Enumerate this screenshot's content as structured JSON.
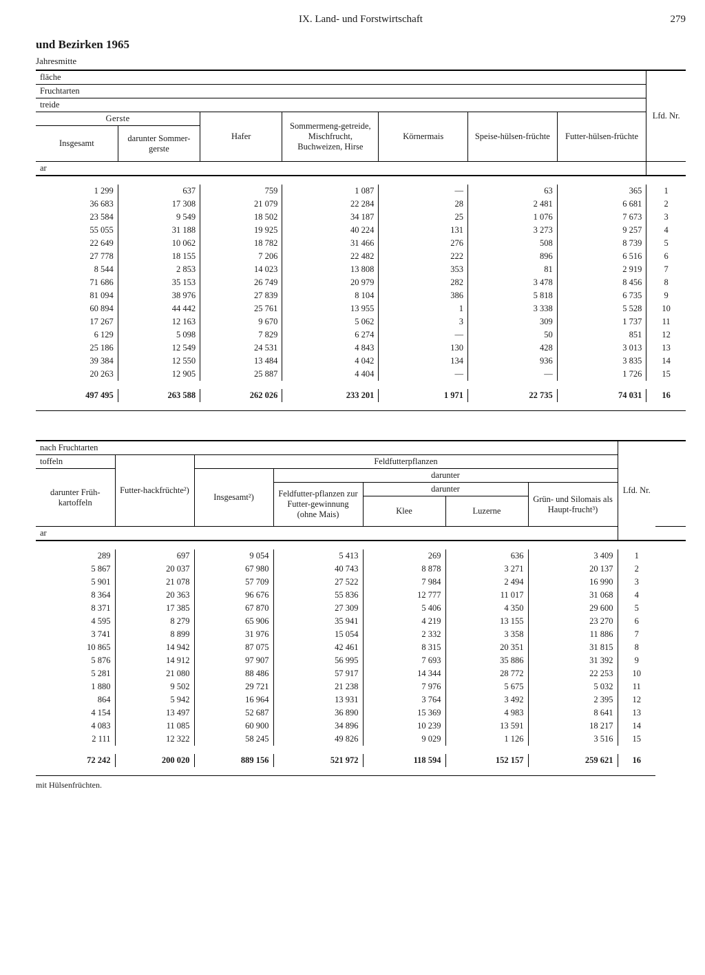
{
  "page": {
    "chapter": "IX. Land- und Forstwirtschaft",
    "number": "279",
    "title_continuation": "und Bezirken 1965",
    "mid_note": "Jahresmitte",
    "footnote": "mit Hülsenfrüchten."
  },
  "t1": {
    "hdr_flaeche": "fläche",
    "hdr_fruchtarten": "Fruchtarten",
    "hdr_treide": "treide",
    "hdr_gerste": "Gerste",
    "hdr_insgesamt": "Insgesamt",
    "hdr_sommergerste": "darunter Sommer-gerste",
    "hdr_hafer": "Hafer",
    "hdr_sommermeng": "Sommermeng-getreide, Mischfrucht, Buchweizen, Hirse",
    "hdr_koernermais": "Körnermais",
    "hdr_speise": "Speise-hülsen-früchte",
    "hdr_futter": "Futter-hülsen-früchte",
    "hdr_lfd": "Lfd. Nr.",
    "unit": "ar",
    "rows": [
      [
        "1 299",
        "637",
        "759",
        "1 087",
        "—",
        "63",
        "365",
        "1"
      ],
      [
        "36 683",
        "17 308",
        "21 079",
        "22 284",
        "28",
        "2 481",
        "6 681",
        "2"
      ],
      [
        "23 584",
        "9 549",
        "18 502",
        "34 187",
        "25",
        "1 076",
        "7 673",
        "3"
      ],
      [
        "55 055",
        "31 188",
        "19 925",
        "40 224",
        "131",
        "3 273",
        "9 257",
        "4"
      ],
      [
        "22 649",
        "10 062",
        "18 782",
        "31 466",
        "276",
        "508",
        "8 739",
        "5"
      ],
      [
        "27 778",
        "18 155",
        "7 206",
        "22 482",
        "222",
        "896",
        "6 516",
        "6"
      ],
      [
        "8 544",
        "2 853",
        "14 023",
        "13 808",
        "353",
        "81",
        "2 919",
        "7"
      ],
      [
        "71 686",
        "35 153",
        "26 749",
        "20 979",
        "282",
        "3 478",
        "8 456",
        "8"
      ],
      [
        "81 094",
        "38 976",
        "27 839",
        "8 104",
        "386",
        "5 818",
        "6 735",
        "9"
      ],
      [
        "60 894",
        "44 442",
        "25 761",
        "13 955",
        "1",
        "3 338",
        "5 528",
        "10"
      ],
      [
        "17 267",
        "12 163",
        "9 670",
        "5 062",
        "3",
        "309",
        "1 737",
        "11"
      ],
      [
        "6 129",
        "5 098",
        "7 829",
        "6 274",
        "—",
        "50",
        "851",
        "12"
      ],
      [
        "25 186",
        "12 549",
        "24 531",
        "4 843",
        "130",
        "428",
        "3 013",
        "13"
      ],
      [
        "39 384",
        "12 550",
        "13 484",
        "4 042",
        "134",
        "936",
        "3 835",
        "14"
      ],
      [
        "20 263",
        "12 905",
        "25 887",
        "4 404",
        "—",
        "—",
        "1 726",
        "15"
      ]
    ],
    "total": [
      "497 495",
      "263 588",
      "262 026",
      "233 201",
      "1 971",
      "22 735",
      "74 031",
      "16"
    ]
  },
  "t2": {
    "hdr_nach_fruchtarten": "nach Fruchtarten",
    "hdr_toffeln": "toffeln",
    "hdr_feldfutter_group": "Feldfutterpflanzen",
    "hdr_darunter": "darunter",
    "hdr_fruehkart": "darunter Früh-kartoffeln",
    "hdr_futterhack": "Futter-hackfrüchte²)",
    "hdr_insgesamt2": "Insgesamt²)",
    "hdr_feld_ohne_mais": "Feldfutter-pflanzen zur Futter-gewinnung (ohne Mais)",
    "hdr_klee": "Klee",
    "hdr_luzerne": "Luzerne",
    "hdr_gruen": "Grün- und Silomais als Haupt-frucht³)",
    "hdr_lfd": "Lfd. Nr.",
    "unit": "ar",
    "rows": [
      [
        "289",
        "697",
        "9 054",
        "5 413",
        "269",
        "636",
        "3 409",
        "1"
      ],
      [
        "5 867",
        "20 037",
        "67 980",
        "40 743",
        "8 878",
        "3 271",
        "20 137",
        "2"
      ],
      [
        "5 901",
        "21 078",
        "57 709",
        "27 522",
        "7 984",
        "2 494",
        "16 990",
        "3"
      ],
      [
        "8 364",
        "20 363",
        "96 676",
        "55 836",
        "12 777",
        "11 017",
        "31 068",
        "4"
      ],
      [
        "8 371",
        "17 385",
        "67 870",
        "27 309",
        "5 406",
        "4 350",
        "29 600",
        "5"
      ],
      [
        "4 595",
        "8 279",
        "65 906",
        "35 941",
        "4 219",
        "13 155",
        "23 270",
        "6"
      ],
      [
        "3 741",
        "8 899",
        "31 976",
        "15 054",
        "2 332",
        "3 358",
        "11 886",
        "7"
      ],
      [
        "10 865",
        "14 942",
        "87 075",
        "42 461",
        "8 315",
        "20 351",
        "31 815",
        "8"
      ],
      [
        "5 876",
        "14 912",
        "97 907",
        "56 995",
        "7 693",
        "35 886",
        "31 392",
        "9"
      ],
      [
        "5 281",
        "21 080",
        "88 486",
        "57 917",
        "14 344",
        "28 772",
        "22 253",
        "10"
      ],
      [
        "1 880",
        "9 502",
        "29 721",
        "21 238",
        "7 976",
        "5 675",
        "5 032",
        "11"
      ],
      [
        "864",
        "5 942",
        "16 964",
        "13 931",
        "3 764",
        "3 492",
        "2 395",
        "12"
      ],
      [
        "4 154",
        "13 497",
        "52 687",
        "36 890",
        "15 369",
        "4 983",
        "8 641",
        "13"
      ],
      [
        "4 083",
        "11 085",
        "60 900",
        "34 896",
        "10 239",
        "13 591",
        "18 217",
        "14"
      ],
      [
        "2 111",
        "12 322",
        "58 245",
        "49 826",
        "9 029",
        "1 126",
        "3 516",
        "15"
      ]
    ],
    "total": [
      "72 242",
      "200 020",
      "889 156",
      "521 972",
      "118 594",
      "152 157",
      "259 621",
      "16"
    ]
  }
}
